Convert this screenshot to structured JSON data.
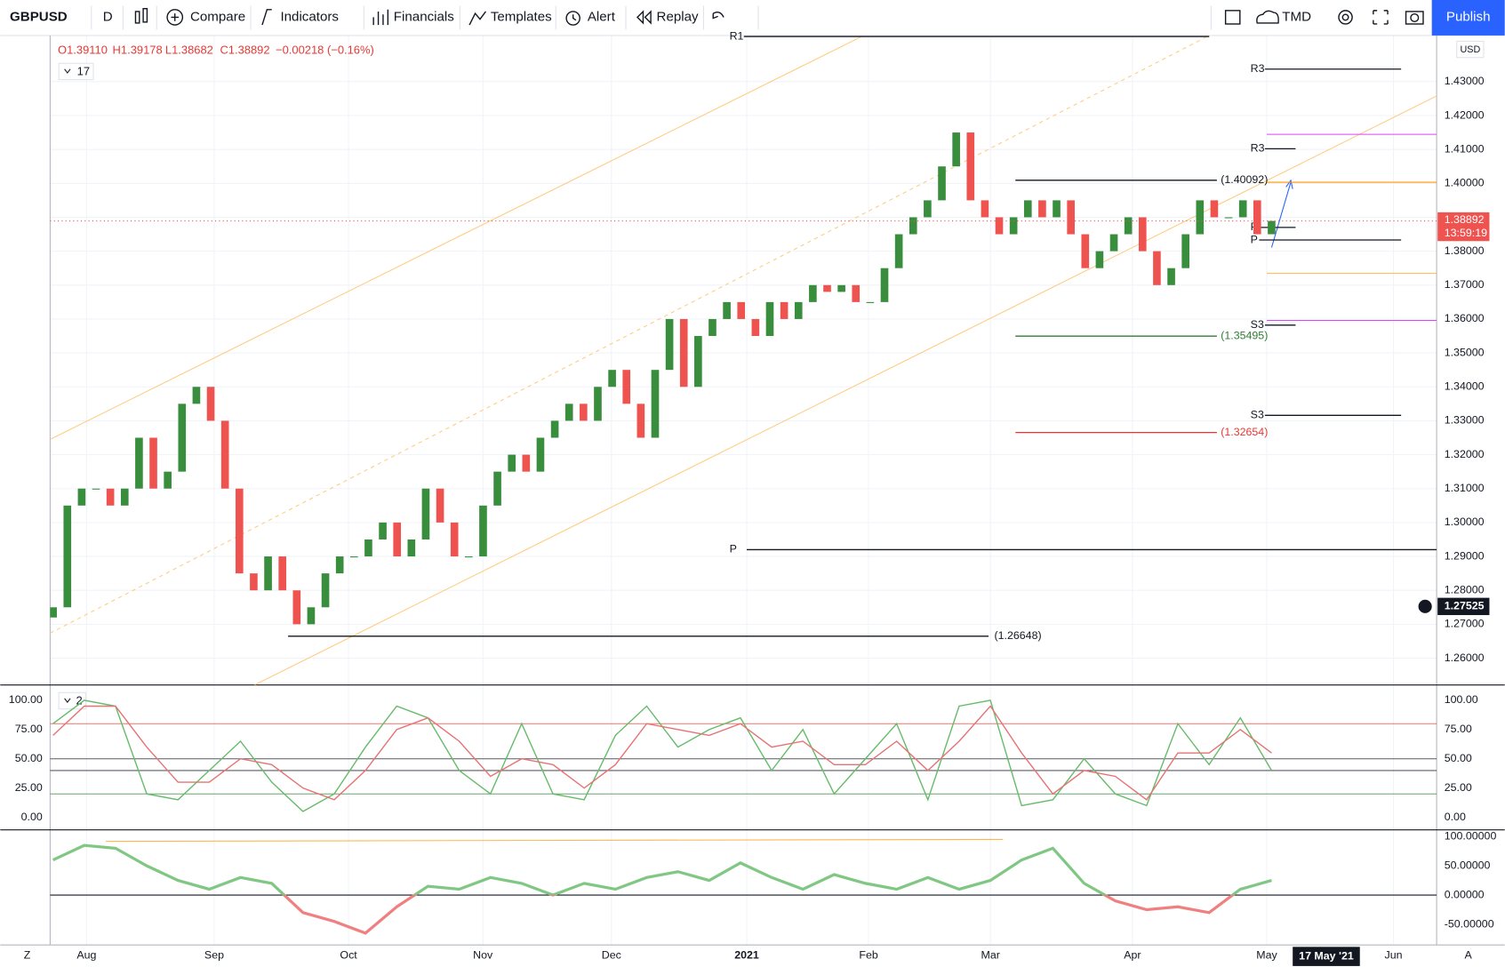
{
  "toolbar": {
    "symbol": "GBPUSD",
    "interval": "D",
    "buttons": [
      "Compare",
      "Indicators",
      "Financials",
      "Templates",
      "Alert",
      "Replay"
    ],
    "layout": "TMD",
    "publish": "Publish"
  },
  "legend": {
    "ohlc": [
      "O1.39110",
      "H1.39178",
      "L1.38682",
      "C1.38892",
      "−0.00218 (−0.16%)"
    ],
    "main_indicators": "17",
    "oscillator_indicators": "2"
  },
  "footer": {
    "left": "Z",
    "right": "A",
    "cursor_date": "17 May '21"
  },
  "chart_data": [
    {
      "type": "candlestick",
      "currency": "USD",
      "x_labels": [
        "Aug",
        "Sep",
        "Oct",
        "Nov",
        "Dec",
        "2021",
        "Feb",
        "Mar",
        "Apr",
        "May",
        "Jun"
      ],
      "open": [
        1.272,
        1.275,
        1.305,
        1.31,
        1.31,
        1.305,
        1.31,
        1.325,
        1.31,
        1.315,
        1.335,
        1.34,
        1.33,
        1.31,
        1.285,
        1.28,
        1.29,
        1.28,
        1.27,
        1.275,
        1.285,
        1.29,
        1.29,
        1.295,
        1.3,
        1.29,
        1.295,
        1.31,
        1.3,
        1.29,
        1.29,
        1.305,
        1.315,
        1.32,
        1.315,
        1.325,
        1.33,
        1.335,
        1.33,
        1.34,
        1.345,
        1.335,
        1.325,
        1.345,
        1.36,
        1.34,
        1.355,
        1.36,
        1.365,
        1.36,
        1.355,
        1.365,
        1.36,
        1.365,
        1.37,
        1.368,
        1.37,
        1.365,
        1.365,
        1.375,
        1.385,
        1.39,
        1.395,
        1.405,
        1.415,
        1.395,
        1.39,
        1.385,
        1.39,
        1.395,
        1.39,
        1.395,
        1.385,
        1.375,
        1.38,
        1.385,
        1.39,
        1.38,
        1.37,
        1.375,
        1.385,
        1.395,
        1.39,
        1.39,
        1.395,
        1.385
      ],
      "close": [
        1.275,
        1.305,
        1.31,
        1.31,
        1.305,
        1.31,
        1.325,
        1.31,
        1.315,
        1.335,
        1.34,
        1.33,
        1.31,
        1.285,
        1.28,
        1.29,
        1.28,
        1.27,
        1.275,
        1.285,
        1.29,
        1.29,
        1.295,
        1.3,
        1.29,
        1.295,
        1.31,
        1.3,
        1.29,
        1.29,
        1.305,
        1.315,
        1.32,
        1.315,
        1.325,
        1.33,
        1.335,
        1.33,
        1.34,
        1.345,
        1.335,
        1.325,
        1.345,
        1.36,
        1.34,
        1.355,
        1.36,
        1.365,
        1.36,
        1.355,
        1.365,
        1.36,
        1.365,
        1.37,
        1.368,
        1.37,
        1.365,
        1.365,
        1.375,
        1.385,
        1.39,
        1.395,
        1.405,
        1.415,
        1.395,
        1.39,
        1.385,
        1.39,
        1.395,
        1.39,
        1.395,
        1.385,
        1.375,
        1.38,
        1.385,
        1.39,
        1.38,
        1.37,
        1.375,
        1.385,
        1.395,
        1.39,
        1.39,
        1.395,
        1.385,
        1.38892
      ],
      "up_color": "#388e3c",
      "down_color": "#ef5350",
      "ylim": [
        1.2521,
        1.4436
      ],
      "yticks": [
        {
          "value": 1.43,
          "label": "1.43000"
        },
        {
          "value": 1.42,
          "label": "1.42000"
        },
        {
          "value": 1.41,
          "label": "1.41000"
        },
        {
          "value": 1.4,
          "label": "1.40000"
        },
        {
          "value": 1.39,
          "label": "1.39000"
        },
        {
          "value": 1.38,
          "label": "1.38000"
        },
        {
          "value": 1.37,
          "label": "1.37000"
        },
        {
          "value": 1.36,
          "label": "1.36000"
        },
        {
          "value": 1.35,
          "label": "1.35000"
        },
        {
          "value": 1.34,
          "label": "1.34000"
        },
        {
          "value": 1.33,
          "label": "1.33000"
        },
        {
          "value": 1.32,
          "label": "1.32000"
        },
        {
          "value": 1.31,
          "label": "1.31000"
        },
        {
          "value": 1.3,
          "label": "1.30000"
        },
        {
          "value": 1.29,
          "label": "1.29000"
        },
        {
          "value": 1.28,
          "label": "1.28000"
        },
        {
          "value": 1.27,
          "label": "1.27000"
        },
        {
          "value": 1.26,
          "label": "1.26000"
        }
      ],
      "grid": true,
      "last_price": 1.38892,
      "countdown": "13:59:19",
      "crosshair_price": 1.27525,
      "levels": [
        {
          "label": "R1",
          "value": 1.4433,
          "color": "#131722"
        },
        {
          "label": "R3",
          "value": 1.4337,
          "color": "#131722"
        },
        {
          "label": "R3",
          "value": 1.4102,
          "color": "#131722"
        },
        {
          "label": "P",
          "value": 1.387,
          "color": "#131722"
        },
        {
          "label": "P",
          "value": 1.3833,
          "color": "#131722"
        },
        {
          "label": "S3",
          "value": 1.3582,
          "color": "#131722"
        },
        {
          "label": "S3",
          "value": 1.3316,
          "color": "#131722"
        },
        {
          "label": "P",
          "value": 1.292,
          "color": "#131722"
        },
        {
          "label": "(1.40092)",
          "value": 1.40092,
          "color": "#131722"
        },
        {
          "label": "(1.35495)",
          "value": 1.35495,
          "color": "#2e7d32"
        },
        {
          "label": "(1.32654)",
          "value": 1.32654,
          "color": "#e53935"
        },
        {
          "label": "(1.26648)",
          "value": 1.26648,
          "color": "#131722"
        }
      ]
    },
    {
      "type": "line",
      "ylim": [
        -10.7,
        113.1
      ],
      "yticks": [
        {
          "value": 100,
          "label": "100.00"
        },
        {
          "value": 75,
          "label": "75.00"
        },
        {
          "value": 50,
          "label": "50.00"
        },
        {
          "value": 25,
          "label": "25.00"
        },
        {
          "value": 0,
          "label": "0.00"
        }
      ],
      "hlines": [
        80,
        50,
        40,
        20
      ],
      "series": [
        {
          "color": "#66bb6a",
          "values": [
            80,
            100,
            95,
            20,
            15,
            40,
            65,
            30,
            5,
            20,
            60,
            95,
            85,
            40,
            20,
            80,
            20,
            15,
            70,
            95,
            60,
            75,
            85,
            40,
            75,
            20,
            50,
            80,
            15,
            95,
            100,
            10,
            15,
            50,
            20,
            10,
            80,
            45,
            85,
            40
          ]
        },
        {
          "color": "#e57373",
          "values": [
            70,
            95,
            95,
            60,
            30,
            30,
            50,
            45,
            25,
            15,
            40,
            75,
            85,
            65,
            35,
            50,
            45,
            25,
            45,
            80,
            75,
            70,
            80,
            60,
            65,
            45,
            45,
            65,
            40,
            65,
            95,
            55,
            20,
            40,
            35,
            15,
            55,
            55,
            75,
            55
          ]
        }
      ]
    },
    {
      "type": "line",
      "ylim": [
        -85.2,
        111.5
      ],
      "yticks": [
        {
          "value": 100,
          "label": "100.00000"
        },
        {
          "value": 50,
          "label": "50.00000"
        },
        {
          "value": 0,
          "label": "0.00000"
        },
        {
          "value": -50,
          "label": "-50.00000"
        }
      ],
      "series": [
        {
          "color": "#81c784",
          "negative_color": "#f08080",
          "values": [
            60,
            85,
            80,
            50,
            25,
            10,
            30,
            20,
            -30,
            -45,
            -65,
            -20,
            15,
            10,
            30,
            20,
            0,
            20,
            10,
            30,
            40,
            25,
            55,
            30,
            10,
            35,
            20,
            10,
            30,
            10,
            25,
            60,
            80,
            20,
            -10,
            -25,
            -20,
            -30,
            10,
            25
          ]
        }
      ]
    }
  ]
}
